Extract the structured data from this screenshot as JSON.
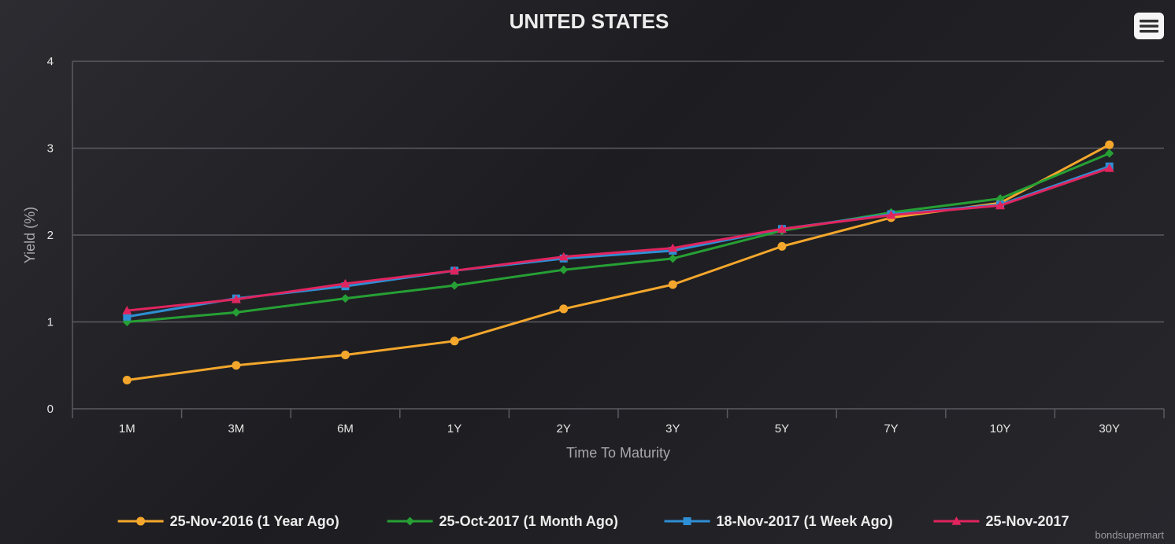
{
  "menu_button": {
    "icon": "hamburger-menu-icon"
  },
  "credit": "bondsupermart",
  "colors": {
    "background": "#232327",
    "grid": "#5a5a60",
    "series": [
      "#f4a72c",
      "#26a034",
      "#2e8fd4",
      "#e0245e"
    ]
  },
  "chart_data": {
    "type": "line",
    "title": "UNITED STATES",
    "xlabel": "Time To Maturity",
    "ylabel": "Yield (%)",
    "ylim": [
      0,
      4
    ],
    "yticks": [
      "0",
      "1",
      "2",
      "3",
      "4"
    ],
    "grid": true,
    "legend_position": "bottom",
    "categories": [
      "1M",
      "3M",
      "6M",
      "1Y",
      "2Y",
      "3Y",
      "5Y",
      "7Y",
      "10Y",
      "30Y"
    ],
    "series": [
      {
        "name": "25-Nov-2016 (1 Year Ago)",
        "marker": "circle",
        "color": "#f4a72c",
        "values": [
          0.33,
          0.5,
          0.62,
          0.78,
          1.15,
          1.43,
          1.87,
          2.2,
          2.37,
          3.04
        ]
      },
      {
        "name": "25-Oct-2017 (1 Month Ago)",
        "marker": "diamond",
        "color": "#26a034",
        "values": [
          1.0,
          1.11,
          1.27,
          1.42,
          1.6,
          1.73,
          2.05,
          2.26,
          2.42,
          2.94
        ]
      },
      {
        "name": "18-Nov-2017 (1 Week Ago)",
        "marker": "square",
        "color": "#2e8fd4",
        "values": [
          1.06,
          1.27,
          1.41,
          1.59,
          1.73,
          1.82,
          2.07,
          2.24,
          2.35,
          2.79
        ]
      },
      {
        "name": "25-Nov-2017",
        "marker": "triangle",
        "color": "#e0245e",
        "values": [
          1.13,
          1.26,
          1.44,
          1.59,
          1.75,
          1.85,
          2.07,
          2.23,
          2.34,
          2.77
        ]
      }
    ]
  }
}
